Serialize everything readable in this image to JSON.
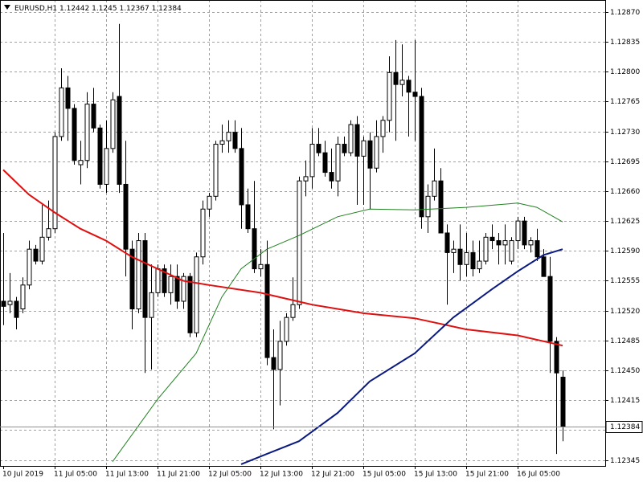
{
  "chart_data": {
    "type": "candlestick",
    "symbol": "EURUSD,H1",
    "categories": [
      "10 Jul 2019",
      null,
      null,
      null,
      null,
      null,
      null,
      null,
      "11 Jul 05:00",
      null,
      null,
      null,
      null,
      null,
      null,
      null,
      "11 Jul 13:00",
      null,
      null,
      null,
      null,
      null,
      null,
      null,
      "11 Jul 21:00",
      null,
      null,
      null,
      null,
      null,
      null,
      null,
      "12 Jul 05:00",
      null,
      null,
      null,
      null,
      null,
      null,
      null,
      "12 Jul 13:00",
      null,
      null,
      null,
      null,
      null,
      null,
      null,
      "12 Jul 21:00",
      null,
      null,
      null,
      null,
      null,
      null,
      null,
      "15 Jul 05:00",
      null,
      null,
      null,
      null,
      null,
      null,
      null,
      "15 Jul 13:00",
      null,
      null,
      null,
      null,
      null,
      null,
      null,
      "15 Jul 21:00",
      null,
      null,
      null,
      null,
      null,
      null,
      null,
      "16 Jul 05:00",
      null,
      null,
      null,
      null,
      null,
      null,
      null
    ],
    "open": [
      1.12531,
      1.12527,
      1.12531,
      1.12522,
      1.1255,
      1.12592,
      1.12578,
      1.12606,
      1.12616,
      1.12724,
      1.12781,
      1.12757,
      1.12691,
      1.12696,
      1.12762,
      1.12734,
      1.12668,
      1.1271,
      1.12771,
      1.12668,
      1.12592,
      1.12522,
      1.12602,
      1.12512,
      1.12541,
      1.12569,
      1.12541,
      1.1256,
      1.12531,
      1.1256,
      1.12494,
      1.12583,
      1.12639,
      1.12654,
      1.12715,
      1.12719,
      1.12729,
      1.1271,
      1.12644,
      1.12616,
      1.12569,
      1.12574,
      1.12465,
      1.12451,
      1.12484,
      1.12512,
      1.12527,
      1.12672,
      1.12677,
      1.12715,
      1.12705,
      1.12682,
      1.12672,
      1.12715,
      1.12705,
      1.12738,
      1.12701,
      1.12719,
      1.12687,
      1.12724,
      1.12743,
      1.12799,
      1.12785,
      1.1279,
      1.12776,
      1.12771,
      1.1263,
      1.12654,
      1.12672,
      1.12611,
      1.12588,
      1.12592,
      1.12574,
      1.12588,
      1.12569,
      1.12578,
      1.12606,
      1.12602,
      1.12597,
      1.12578,
      1.12602,
      1.12625,
      1.12597,
      1.12602,
      1.12583,
      1.1256,
      1.12484,
      1.12442
    ],
    "high": [
      1.12611,
      1.12564,
      1.12536,
      1.12559,
      1.12602,
      1.12597,
      1.12644,
      1.12649,
      1.12729,
      1.12804,
      1.12795,
      1.12762,
      1.12719,
      1.12776,
      1.12781,
      1.12738,
      1.12743,
      1.12776,
      1.12856,
      1.12719,
      1.12602,
      1.12611,
      1.12611,
      1.12574,
      1.12574,
      1.12574,
      1.12574,
      1.12574,
      1.12564,
      1.12564,
      1.12588,
      1.12649,
      1.12658,
      1.12719,
      1.12738,
      1.12743,
      1.12743,
      1.12734,
      1.12663,
      1.12672,
      1.12592,
      1.12602,
      1.12498,
      1.12508,
      1.12517,
      1.12559,
      1.12677,
      1.12696,
      1.12734,
      1.12734,
      1.12719,
      1.1271,
      1.12724,
      1.12724,
      1.12743,
      1.12748,
      1.12724,
      1.12729,
      1.12743,
      1.12748,
      1.12818,
      1.12837,
      1.12832,
      1.12795,
      1.12837,
      1.12781,
      1.12668,
      1.1271,
      1.12687,
      1.12621,
      1.12602,
      1.12621,
      1.12611,
      1.12602,
      1.12602,
      1.12611,
      1.12621,
      1.12611,
      1.12621,
      1.12606,
      1.1263,
      1.1263,
      1.12606,
      1.12616,
      1.12592,
      1.12583,
      1.12489,
      1.1245
    ],
    "low": [
      1.12503,
      1.12517,
      1.12498,
      1.12517,
      1.12545,
      1.12574,
      1.12574,
      1.12602,
      1.12611,
      1.12719,
      1.12719,
      1.12691,
      1.12668,
      1.12687,
      1.12729,
      1.12663,
      1.12658,
      1.12705,
      1.12658,
      1.1256,
      1.12498,
      1.12517,
      1.12447,
      1.12451,
      1.12536,
      1.12536,
      1.12527,
      1.12522,
      1.12522,
      1.12489,
      1.12489,
      1.12574,
      1.1263,
      1.12649,
      1.12705,
      1.12705,
      1.12705,
      1.12616,
      1.12611,
      1.12564,
      1.1256,
      1.12456,
      1.12381,
      1.12409,
      1.12479,
      1.12508,
      1.12522,
      1.12654,
      1.12663,
      1.12701,
      1.12677,
      1.12663,
      1.12654,
      1.12701,
      1.12701,
      1.12644,
      1.12644,
      1.12639,
      1.12682,
      1.12705,
      1.12729,
      1.12719,
      1.12771,
      1.12724,
      1.12719,
      1.12616,
      1.12611,
      1.12649,
      1.12611,
      1.12527,
      1.12564,
      1.12555,
      1.1256,
      1.1256,
      1.12564,
      1.12574,
      1.12592,
      1.12574,
      1.12574,
      1.12574,
      1.12592,
      1.12592,
      1.12588,
      1.12578,
      1.1256,
      1.12447,
      1.12352,
      1.12367
    ],
    "close": [
      1.12525,
      1.12531,
      1.12512,
      1.1255,
      1.12592,
      1.12578,
      1.12606,
      1.12616,
      1.12724,
      1.12781,
      1.12757,
      1.12696,
      1.12696,
      1.12762,
      1.12734,
      1.12668,
      1.1271,
      1.12767,
      1.12668,
      1.12592,
      1.12522,
      1.12602,
      1.12512,
      1.12541,
      1.12569,
      1.12541,
      1.1256,
      1.12531,
      1.1256,
      1.12494,
      1.12583,
      1.12639,
      1.12654,
      1.12715,
      1.12719,
      1.12729,
      1.1271,
      1.12644,
      1.12616,
      1.12569,
      1.12574,
      1.12465,
      1.12451,
      1.12484,
      1.12512,
      1.12527,
      1.12672,
      1.12677,
      1.12715,
      1.12705,
      1.12682,
      1.12672,
      1.12715,
      1.12705,
      1.12738,
      1.12701,
      1.12719,
      1.12687,
      1.12724,
      1.12743,
      1.12799,
      1.12785,
      1.1279,
      1.12776,
      1.12771,
      1.1263,
      1.12654,
      1.12672,
      1.12611,
      1.12588,
      1.12592,
      1.12574,
      1.12588,
      1.12569,
      1.12578,
      1.12606,
      1.12602,
      1.12597,
      1.12602,
      1.12602,
      1.12625,
      1.12597,
      1.12602,
      1.12583,
      1.1256,
      1.12484,
      1.12447,
      1.12384
    ],
    "series": [
      {
        "color": "#e01010",
        "x": [
          0,
          4,
          8,
          12,
          16,
          20,
          24,
          28,
          32,
          40,
          48,
          56,
          64,
          72,
          80,
          87
        ],
        "values": [
          1.12685,
          1.12656,
          1.12635,
          1.12616,
          1.12602,
          1.12583,
          1.12569,
          1.12555,
          1.1255,
          1.12541,
          1.12527,
          1.12517,
          1.12511,
          1.12498,
          1.12491,
          1.12479
        ]
      },
      {
        "color": "#208020",
        "x": [
          17,
          24,
          30,
          34,
          37,
          41,
          46,
          52,
          57,
          64,
          72,
          80,
          83,
          87
        ],
        "values": [
          1.12343,
          1.12416,
          1.1247,
          1.12536,
          1.12569,
          1.12592,
          1.12608,
          1.1263,
          1.12639,
          1.12638,
          1.12641,
          1.12646,
          1.12641,
          1.12624
        ]
      },
      {
        "color": "#0a1a80",
        "x": [
          37,
          41,
          46,
          52,
          57,
          64,
          70,
          76,
          80,
          84,
          87
        ],
        "values": [
          1.1234,
          1.12352,
          1.12367,
          1.124,
          1.12437,
          1.1247,
          1.12512,
          1.12545,
          1.12566,
          1.12585,
          1.12592
        ]
      }
    ],
    "ylim": [
      1.12338,
      1.12884
    ],
    "yticks": [
      {
        "value": 1.12345,
        "label": "1.12345"
      },
      {
        "value": 1.1238,
        "label": "1.12380"
      },
      {
        "value": 1.12415,
        "label": "1.12415"
      },
      {
        "value": 1.1245,
        "label": "1.12450"
      },
      {
        "value": 1.12485,
        "label": "1.12485"
      },
      {
        "value": 1.1252,
        "label": "1.12520"
      },
      {
        "value": 1.12555,
        "label": "1.12555"
      },
      {
        "value": 1.1259,
        "label": "1.12590"
      },
      {
        "value": 1.12625,
        "label": "1.12625"
      },
      {
        "value": 1.1266,
        "label": "1.12660"
      },
      {
        "value": 1.12695,
        "label": "1.12695"
      },
      {
        "value": 1.1273,
        "label": "1.12730"
      },
      {
        "value": 1.12765,
        "label": "1.12765"
      },
      {
        "value": 1.128,
        "label": "1.12800"
      },
      {
        "value": 1.12835,
        "label": "1.12835"
      },
      {
        "value": 1.1287,
        "label": "1.12870"
      }
    ],
    "grid": true,
    "up_color": "#ffffff",
    "down_color": "#000000",
    "outline_color": "#000000"
  }
}
